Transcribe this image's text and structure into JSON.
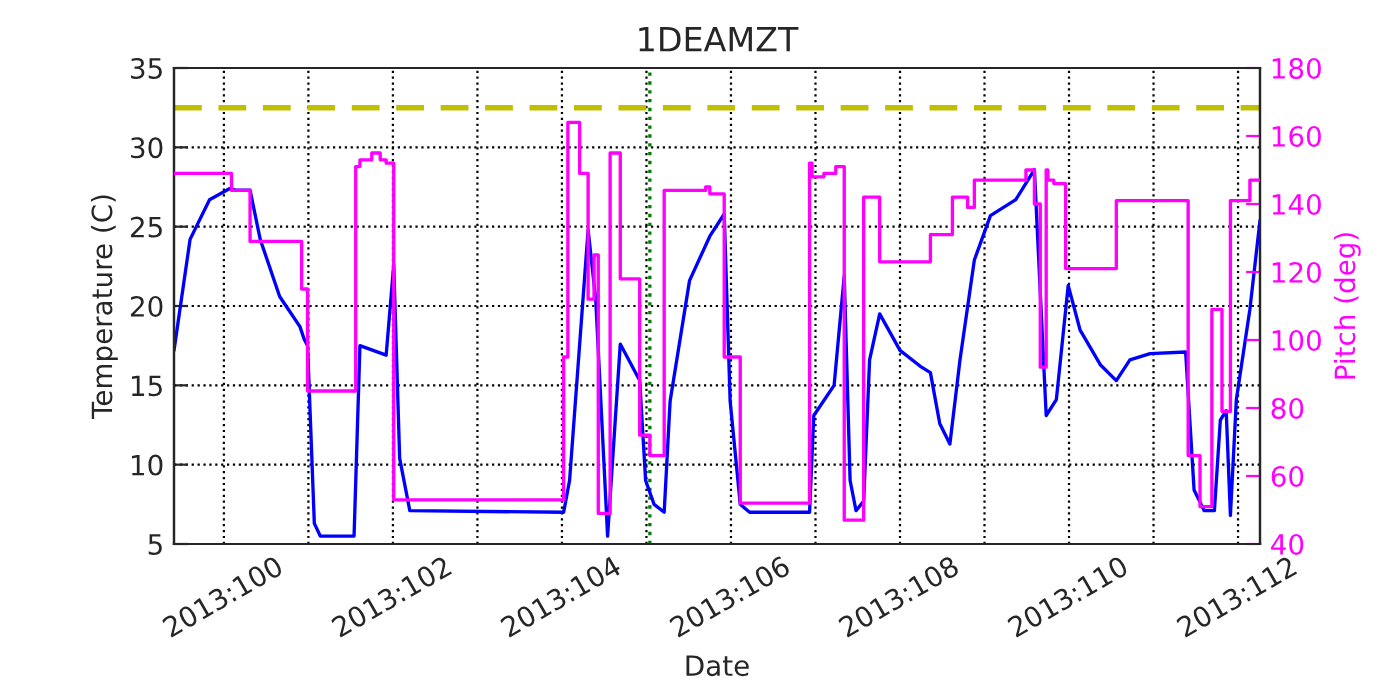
{
  "chart_data": {
    "type": "line",
    "title": "1DEAMZT",
    "xlabel": "Date",
    "ylabel": "Temperature (C)",
    "y2label": "Pitch (deg)",
    "xlim": [
      "2013-04-09T09:50",
      "2013-04-22T06:14"
    ],
    "xticks": [
      {
        "value": "2013-04-10",
        "label": "2013:100"
      },
      {
        "value": "2013-04-11",
        "label": null
      },
      {
        "value": "2013-04-12",
        "label": "2013:102"
      },
      {
        "value": "2013-04-13",
        "label": null
      },
      {
        "value": "2013-04-14",
        "label": "2013:104"
      },
      {
        "value": "2013-04-15",
        "label": null
      },
      {
        "value": "2013-04-16",
        "label": "2013:106"
      },
      {
        "value": "2013-04-17",
        "label": null
      },
      {
        "value": "2013-04-18",
        "label": "2013:108"
      },
      {
        "value": "2013-04-19",
        "label": null
      },
      {
        "value": "2013-04-20",
        "label": "2013:110"
      },
      {
        "value": "2013-04-21",
        "label": null
      },
      {
        "value": "2013-04-22",
        "label": "2013:112"
      }
    ],
    "ylim": [
      5,
      35
    ],
    "yticks": [
      5,
      10,
      15,
      20,
      25,
      30,
      35
    ],
    "y2lim": [
      40,
      180
    ],
    "y2ticks": [
      40,
      60,
      80,
      100,
      120,
      140,
      160,
      180
    ],
    "grid": true,
    "ref_lines": [
      {
        "axis": "y",
        "value": 32.5,
        "label": null,
        "color": "#bfbf00",
        "line_style": "dashed"
      },
      {
        "axis": "x",
        "value": "2013-04-15T00:58",
        "label": null,
        "color": "#008000",
        "line_style": "dotted"
      }
    ],
    "series": [
      {
        "color": "#0000ff",
        "x": [
          "2013-04-09T09:50",
          "2013-04-09T14:24",
          "2013-04-09T19:55",
          "2013-04-10T01:41",
          "2013-04-10T03:22",
          "2013-04-10T07:26",
          "2013-04-10T10:19",
          "2013-04-10T15:50",
          "2013-04-10T21:36",
          "2013-04-10T22:48",
          "2013-04-10T23:46",
          "2013-04-11T01:41",
          "2013-04-11T03:22",
          "2013-04-11T12:58",
          "2013-04-11T14:38",
          "2013-04-11T22:05",
          "2013-04-12T00:14",
          "2013-04-12T01:55",
          "2013-04-12T04:48",
          "2013-04-14T00:29",
          "2013-04-14T02:10",
          "2013-04-14T07:26",
          "2013-04-14T09:36",
          "2013-04-14T12:58",
          "2013-04-14T16:34",
          "2013-04-14T22:05",
          "2013-04-14T23:46",
          "2013-04-15T02:10",
          "2013-04-15T05:02",
          "2013-04-15T06:43",
          "2013-04-15T12:14",
          "2013-04-15T18:00",
          "2013-04-15T22:05",
          "2013-04-15T23:46",
          "2013-04-16T02:38",
          "2013-04-16T05:17",
          "2013-04-16T22:19",
          "2013-04-16T23:31",
          "2013-04-17T05:17",
          "2013-04-17T08:10",
          "2013-04-17T09:50",
          "2013-04-17T11:31",
          "2013-04-17T13:41",
          "2013-04-17T15:22",
          "2013-04-17T18:14",
          "2013-04-18T00:00",
          "2013-04-18T05:46",
          "2013-04-18T08:38",
          "2013-04-18T11:17",
          "2013-04-18T14:10",
          "2013-04-18T17:02",
          "2013-04-18T21:07",
          "2013-04-19T01:41",
          "2013-04-19T08:53",
          "2013-04-19T14:10",
          "2013-04-19T17:31",
          "2013-04-19T20:24",
          "2013-04-19T23:46",
          "2013-04-20T03:07",
          "2013-04-20T08:53",
          "2013-04-20T13:26",
          "2013-04-20T17:17",
          "2013-04-20T23:02",
          "2013-04-21T09:07",
          "2013-04-21T11:31",
          "2013-04-21T14:24",
          "2013-04-21T17:17",
          "2013-04-21T18:58",
          "2013-04-21T20:38",
          "2013-04-21T21:50",
          "2013-04-21T23:31",
          "2013-04-22T03:22",
          "2013-04-22T06:14"
        ],
        "values": [
          17.2,
          24.2,
          26.7,
          27.4,
          27.3,
          27.3,
          24.2,
          20.6,
          18.7,
          17.9,
          17.5,
          6.3,
          5.5,
          5.5,
          17.5,
          16.9,
          22.6,
          10.4,
          7.1,
          7.0,
          9.0,
          24.8,
          20.4,
          5.5,
          17.6,
          15.3,
          9.0,
          7.5,
          7.0,
          14.0,
          21.6,
          24.4,
          25.8,
          14.0,
          7.5,
          7.0,
          7.0,
          13.1,
          15.0,
          21.9,
          9.0,
          7.1,
          7.7,
          16.6,
          19.5,
          17.2,
          16.2,
          15.8,
          12.6,
          11.3,
          16.6,
          22.9,
          25.7,
          26.7,
          28.6,
          13.1,
          14.1,
          21.3,
          18.5,
          16.3,
          15.3,
          16.6,
          17.0,
          17.1,
          8.4,
          7.1,
          7.1,
          12.8,
          13.4,
          6.8,
          14.1,
          19.8,
          25.4
        ]
      },
      {
        "type": "step",
        "axis": "y2",
        "color": "#ff00ff",
        "x": [
          "2013-04-09T09:50",
          "2013-04-10T02:10",
          "2013-04-10T07:26",
          "2013-04-10T22:05",
          "2013-04-10T23:46",
          "2013-04-11T13:26",
          "2013-04-11T14:38",
          "2013-04-11T18:00",
          "2013-04-11T20:24",
          "2013-04-11T22:05",
          "2013-04-12T00:14",
          "2013-04-14T00:29",
          "2013-04-14T01:41",
          "2013-04-14T05:02",
          "2013-04-14T07:26",
          "2013-04-14T09:07",
          "2013-04-14T10:19",
          "2013-04-14T13:41",
          "2013-04-14T16:34",
          "2013-04-14T22:05",
          "2013-04-15T00:58",
          "2013-04-15T05:02",
          "2013-04-15T16:48",
          "2013-04-15T18:00",
          "2013-04-15T22:05",
          "2013-04-16T02:38",
          "2013-04-16T22:19",
          "2013-04-16T23:02",
          "2013-04-17T02:24",
          "2013-04-17T05:46",
          "2013-04-17T08:10",
          "2013-04-17T13:41",
          "2013-04-17T18:14",
          "2013-04-18T08:38",
          "2013-04-18T14:53",
          "2013-04-18T19:12",
          "2013-04-18T21:07",
          "2013-04-19T11:46",
          "2013-04-19T14:10",
          "2013-04-19T15:50",
          "2013-04-19T17:31",
          "2013-04-19T18:00",
          "2013-04-19T19:41",
          "2013-04-19T23:02",
          "2013-04-20T13:26",
          "2013-04-21T09:50",
          "2013-04-21T13:12",
          "2013-04-21T16:34",
          "2013-04-21T19:26",
          "2013-04-21T21:50",
          "2013-04-22T03:22",
          "2013-04-22T06:14"
        ],
        "values": [
          149,
          144,
          129,
          115,
          85,
          151,
          153,
          155,
          153,
          152,
          53,
          95,
          164,
          149,
          112,
          125,
          49,
          155,
          118,
          72,
          66,
          144,
          145,
          143,
          95,
          52,
          152,
          148,
          149,
          151,
          47,
          142,
          123,
          131,
          142,
          139,
          147,
          150,
          140,
          92,
          150,
          147,
          146,
          121,
          141,
          66,
          51,
          109,
          79,
          141,
          147,
          147
        ]
      }
    ]
  }
}
